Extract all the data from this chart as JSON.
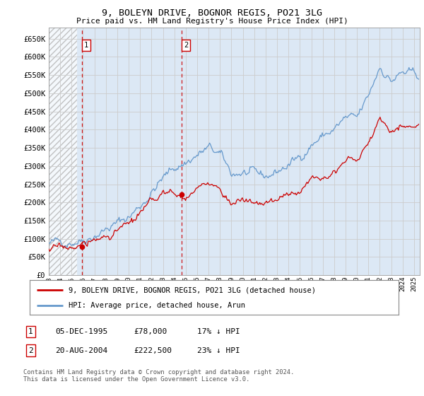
{
  "title1": "9, BOLEYN DRIVE, BOGNOR REGIS, PO21 3LG",
  "title2": "Price paid vs. HM Land Registry's House Price Index (HPI)",
  "ylim": [
    0,
    680000
  ],
  "yticks": [
    0,
    50000,
    100000,
    150000,
    200000,
    250000,
    300000,
    350000,
    400000,
    450000,
    500000,
    550000,
    600000,
    650000
  ],
  "xlim_start": 1993.0,
  "xlim_end": 2025.5,
  "xtick_years": [
    1993,
    1994,
    1995,
    1996,
    1997,
    1998,
    1999,
    2000,
    2001,
    2002,
    2003,
    2004,
    2005,
    2006,
    2007,
    2008,
    2009,
    2010,
    2011,
    2012,
    2013,
    2014,
    2015,
    2016,
    2017,
    2018,
    2019,
    2020,
    2021,
    2022,
    2023,
    2024,
    2025
  ],
  "sale1_x": 1995.92,
  "sale1_y": 78000,
  "sale1_label": "1",
  "sale2_x": 2004.63,
  "sale2_y": 222500,
  "sale2_label": "2",
  "sale_color": "#cc0000",
  "hpi_color": "#6699cc",
  "grid_color": "#cccccc",
  "legend_label1": "9, BOLEYN DRIVE, BOGNOR REGIS, PO21 3LG (detached house)",
  "legend_label2": "HPI: Average price, detached house, Arun",
  "ann1_date": "05-DEC-1995",
  "ann1_price": "£78,000",
  "ann1_hpi": "17% ↓ HPI",
  "ann2_date": "20-AUG-2004",
  "ann2_price": "£222,500",
  "ann2_hpi": "23% ↓ HPI",
  "footer": "Contains HM Land Registry data © Crown copyright and database right 2024.\nThis data is licensed under the Open Government Licence v3.0.",
  "background_color": "#ffffff",
  "plot_bg_color": "#dce8f5",
  "hpi_key_years": [
    1993,
    1994,
    1995,
    1996,
    1997,
    1998,
    1999,
    2000,
    2001,
    2002,
    2003,
    2004,
    2005,
    2006,
    2007,
    2008,
    2009,
    2010,
    2011,
    2012,
    2013,
    2014,
    2015,
    2016,
    2017,
    2018,
    2019,
    2020,
    2021,
    2022,
    2023,
    2024,
    2025
  ],
  "hpi_key_vals": [
    88000,
    92000,
    95000,
    100000,
    112000,
    126000,
    142000,
    160000,
    190000,
    228000,
    265000,
    295000,
    310000,
    330000,
    348000,
    330000,
    278000,
    282000,
    275000,
    270000,
    285000,
    302000,
    325000,
    360000,
    382000,
    400000,
    430000,
    428000,
    490000,
    575000,
    535000,
    555000,
    548000
  ],
  "sale_key_years": [
    1993,
    1994,
    1995,
    1996,
    1997,
    1998,
    1999,
    2000,
    2001,
    2002,
    2003,
    2004,
    2005,
    2006,
    2007,
    2008,
    2009,
    2010,
    2011,
    2012,
    2013,
    2014,
    2015,
    2016,
    2017,
    2018,
    2019,
    2020,
    2021,
    2022,
    2023,
    2024,
    2025
  ],
  "sale_key_vals": [
    72000,
    76000,
    78000,
    84000,
    94000,
    107000,
    121000,
    138000,
    165000,
    198000,
    228000,
    222500,
    216000,
    235000,
    250000,
    238000,
    200000,
    204000,
    198000,
    195000,
    207000,
    220000,
    237000,
    263000,
    280000,
    292000,
    317000,
    318000,
    362000,
    430000,
    400000,
    415000,
    410000
  ],
  "hpi_noise_seed": 42,
  "sale_noise_seed": 17,
  "hpi_noise_scale": 4500,
  "sale_noise_scale": 3500
}
